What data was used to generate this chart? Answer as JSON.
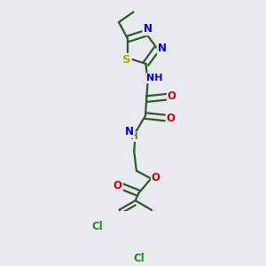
{
  "bg_color": "#e8eaf0",
  "bond_color": "#2d5a2d",
  "bond_width": 1.6,
  "atom_colors": {
    "N": "#0000cc",
    "O": "#cc0000",
    "S": "#aaaa00",
    "Cl": "#228B22",
    "C": "#2d5a2d",
    "H": "#5a7a5a"
  },
  "font_size": 8.5,
  "title": ""
}
